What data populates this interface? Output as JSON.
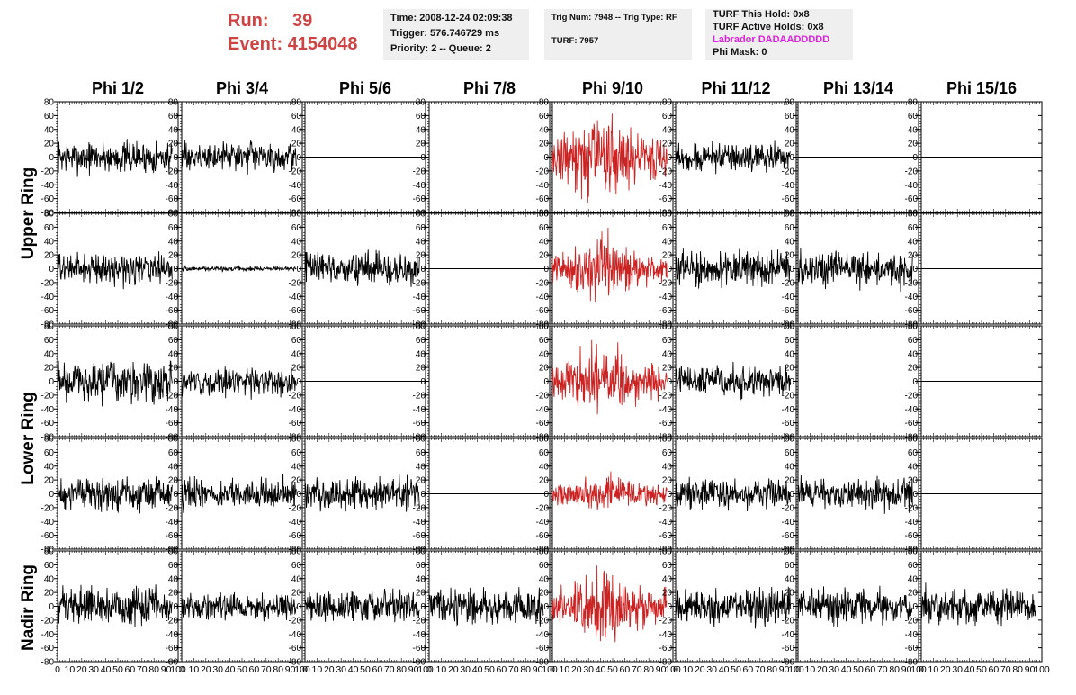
{
  "header": {
    "run_label": "Run:",
    "run_value": "39",
    "event_label": "Event:",
    "event_value": "4154048"
  },
  "info_time": {
    "time": "Time: 2008-12-24 02:09:38",
    "trigger": "Trigger: 576.746729 ms",
    "priority": "Priority: 2 -- Queue: 2"
  },
  "info_trig": {
    "trig": "Trig Num: 7948 -- Trig Type: RF",
    "turf": "TURF: 7957"
  },
  "info_turf": {
    "this_hold": "TURF This Hold: 0x8",
    "active_holds": "TURF Active Holds: 0x8",
    "labrador": "Labrador DADAADDDDD",
    "phi_mask": "Phi Mask: 0"
  },
  "colors": {
    "trace": "#000000",
    "highlight_trace": "#cc2222",
    "header_text": "#cc4444",
    "labrador_text": "#e020e0",
    "info_box": "#efefef"
  },
  "chart_data": {
    "type": "line",
    "columns": [
      "Phi 1/2",
      "Phi 3/4",
      "Phi 5/6",
      "Phi 7/8",
      "Phi 9/10",
      "Phi 11/12",
      "Phi 13/14",
      "Phi 15/16"
    ],
    "row_labels": [
      "Upper Ring",
      "Lower Ring",
      "Nadir Ring"
    ],
    "ylim": [
      -80,
      80
    ],
    "xlim": [
      0,
      100
    ],
    "y_ticks": [
      -80,
      -60,
      -40,
      -20,
      0,
      20,
      40,
      60,
      80
    ],
    "x_ticks": [
      0,
      10,
      20,
      30,
      40,
      50,
      60,
      70,
      80,
      90,
      100
    ],
    "x_tick_labels": [
      "0",
      "10",
      "20",
      "30",
      "40",
      "50",
      "60",
      "70",
      "80",
      "90",
      "100"
    ],
    "highlight_column": 4,
    "panels": [
      {
        "row": 0,
        "col": 0,
        "amp": 14,
        "flat": false
      },
      {
        "row": 0,
        "col": 1,
        "amp": 12,
        "flat": false
      },
      {
        "row": 0,
        "col": 2,
        "amp": 0,
        "flat": true
      },
      {
        "row": 0,
        "col": 3,
        "amp": 0,
        "flat": true,
        "no_trace": true
      },
      {
        "row": 0,
        "col": 4,
        "amp": 32,
        "flat": false
      },
      {
        "row": 0,
        "col": 5,
        "amp": 12,
        "flat": false
      },
      {
        "row": 0,
        "col": 6,
        "amp": 0,
        "flat": true
      },
      {
        "row": 0,
        "col": 7,
        "amp": 0,
        "flat": true
      },
      {
        "row": 1,
        "col": 0,
        "amp": 13,
        "flat": false
      },
      {
        "row": 1,
        "col": 1,
        "amp": 2,
        "flat": false
      },
      {
        "row": 1,
        "col": 2,
        "amp": 14,
        "flat": false
      },
      {
        "row": 1,
        "col": 3,
        "amp": 0,
        "flat": true
      },
      {
        "row": 1,
        "col": 4,
        "amp": 22,
        "flat": false
      },
      {
        "row": 1,
        "col": 5,
        "amp": 15,
        "flat": false
      },
      {
        "row": 1,
        "col": 6,
        "amp": 15,
        "flat": false
      },
      {
        "row": 1,
        "col": 7,
        "amp": 0,
        "flat": true
      },
      {
        "row": 2,
        "col": 0,
        "amp": 18,
        "flat": false
      },
      {
        "row": 2,
        "col": 1,
        "amp": 12,
        "flat": false
      },
      {
        "row": 2,
        "col": 2,
        "amp": 0,
        "flat": true
      },
      {
        "row": 2,
        "col": 3,
        "amp": 0,
        "flat": true,
        "no_trace": true
      },
      {
        "row": 2,
        "col": 4,
        "amp": 25,
        "flat": false
      },
      {
        "row": 2,
        "col": 5,
        "amp": 14,
        "flat": false
      },
      {
        "row": 2,
        "col": 6,
        "amp": 0,
        "flat": true,
        "no_trace": true
      },
      {
        "row": 2,
        "col": 7,
        "amp": 0,
        "flat": true
      },
      {
        "row": 3,
        "col": 0,
        "amp": 14,
        "flat": false
      },
      {
        "row": 3,
        "col": 1,
        "amp": 13,
        "flat": false
      },
      {
        "row": 3,
        "col": 2,
        "amp": 15,
        "flat": false
      },
      {
        "row": 3,
        "col": 3,
        "amp": 0,
        "flat": true
      },
      {
        "row": 3,
        "col": 4,
        "amp": 14,
        "flat": false
      },
      {
        "row": 3,
        "col": 5,
        "amp": 13,
        "flat": false
      },
      {
        "row": 3,
        "col": 6,
        "amp": 14,
        "flat": false
      },
      {
        "row": 3,
        "col": 7,
        "amp": 0,
        "flat": true
      },
      {
        "row": 4,
        "col": 0,
        "amp": 16,
        "flat": false
      },
      {
        "row": 4,
        "col": 1,
        "amp": 11,
        "flat": false
      },
      {
        "row": 4,
        "col": 2,
        "amp": 14,
        "flat": false
      },
      {
        "row": 4,
        "col": 3,
        "amp": 15,
        "flat": false
      },
      {
        "row": 4,
        "col": 4,
        "amp": 26,
        "flat": false
      },
      {
        "row": 4,
        "col": 5,
        "amp": 15,
        "flat": false
      },
      {
        "row": 4,
        "col": 6,
        "amp": 15,
        "flat": false
      },
      {
        "row": 4,
        "col": 7,
        "amp": 16,
        "flat": false
      }
    ]
  }
}
